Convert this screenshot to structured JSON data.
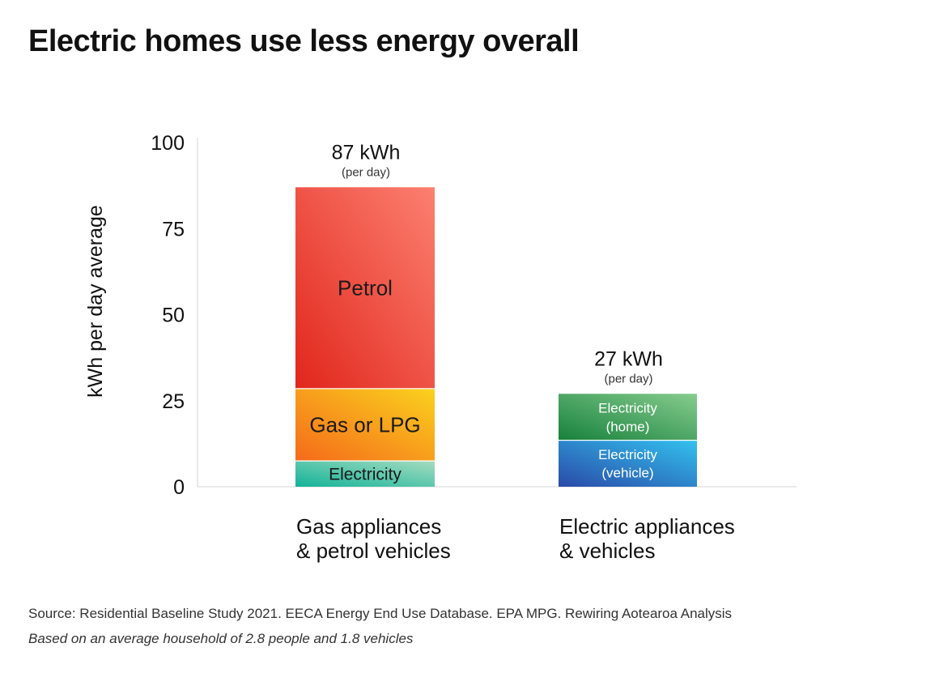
{
  "title": "Electric homes use less energy overall",
  "chart_data": {
    "type": "bar",
    "stacked": true,
    "title": "Electric homes use less energy overall",
    "ylabel": "kWh per day average",
    "xlabel": "",
    "ylim": [
      0,
      100
    ],
    "yticks": [
      "0",
      "25",
      "50",
      "75",
      "100"
    ],
    "categories": [
      [
        "Gas appliances",
        "& petrol vehicles"
      ],
      [
        "Electric appliances",
        "& vehicles"
      ]
    ],
    "totals": [
      {
        "label": "87 kWh",
        "sublabel": "(per day)",
        "value": 87
      },
      {
        "label": "27 kWh",
        "sublabel": "(per day)",
        "value": 27
      }
    ],
    "stacks": [
      [
        {
          "name": "Electricity",
          "value": 7.5,
          "label": [
            "Electricity"
          ],
          "colors": [
            "#12b399",
            "#a6dcc0"
          ],
          "text_color": "#1a1a1a",
          "font_size": "large"
        },
        {
          "name": "Gas or LPG",
          "value": 21,
          "label": [
            "Gas or LPG"
          ],
          "colors": [
            "#f56a1a",
            "#fad21e"
          ],
          "text_color": "#1a1a1a",
          "font_size": "xlarge"
        },
        {
          "name": "Petrol",
          "value": 58.5,
          "label": [
            "Petrol"
          ],
          "colors": [
            "#e1261c",
            "#fc8070"
          ],
          "text_color": "#1a1a1a",
          "font_size": "xlarge"
        }
      ],
      [
        {
          "name": "Electricity (vehicle)",
          "value": 13.5,
          "label": [
            "Electricity",
            "(vehicle)"
          ],
          "colors": [
            "#2a4aa8",
            "#32c2ee"
          ],
          "text_color": "#ffffff",
          "font_size": "medium"
        },
        {
          "name": "Electricity (home)",
          "value": 13.5,
          "label": [
            "Electricity",
            "(home)"
          ],
          "colors": [
            "#17813c",
            "#86cc8e"
          ],
          "text_color": "#ffffff",
          "font_size": "medium"
        }
      ]
    ]
  },
  "footer": {
    "source": "Source: Residential Baseline Study 2021. EECA Energy End Use Database. EPA MPG. Rewiring Aotearoa Analysis",
    "note": "Based on an average household of 2.8 people and 1.8 vehicles"
  }
}
